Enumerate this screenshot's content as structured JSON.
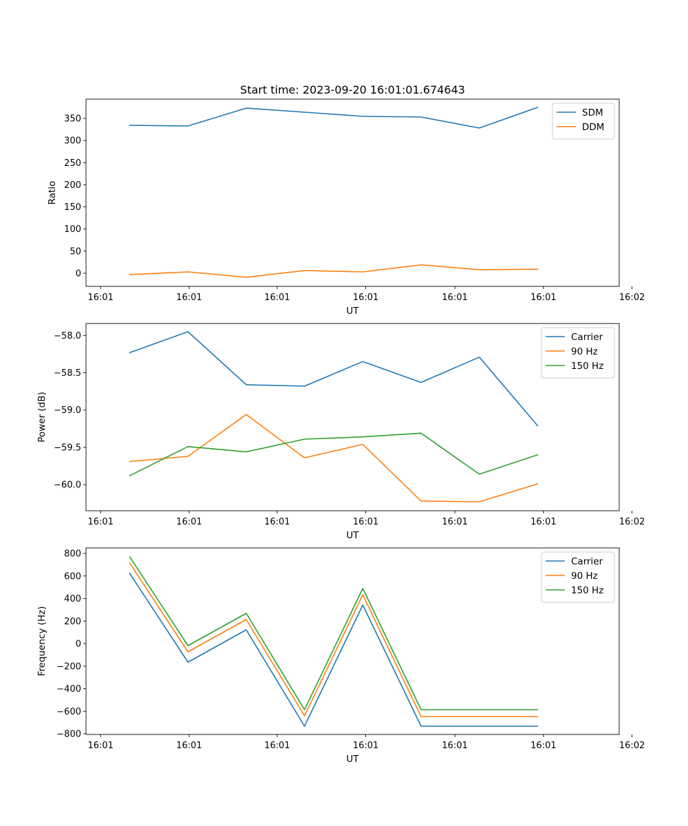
{
  "chart_data": [
    {
      "type": "line",
      "title": "Start time: 2023-09-20 16:01:01.674643",
      "xlabel": "UT",
      "ylabel": "Ratio",
      "xtick_labels": [
        "16:01",
        "16:01",
        "16:01",
        "16:01",
        "16:01",
        "16:01",
        "16:02"
      ],
      "ytick_labels": [
        "0",
        "50",
        "100",
        "150",
        "200",
        "250",
        "300",
        "350"
      ],
      "yticks": [
        0,
        50,
        100,
        150,
        200,
        250,
        300,
        350
      ],
      "ylim": [
        -29.6,
        393.5
      ],
      "x": [
        1,
        2,
        3,
        4,
        5,
        6,
        7,
        8
      ],
      "xlim": [
        0.25,
        9.4
      ],
      "xticks": [
        0.5,
        2.02,
        3.53,
        5.05,
        6.58,
        8.1,
        9.62
      ],
      "legend_position": "top-right",
      "grid": false,
      "series": [
        {
          "name": "SDM",
          "color": "#1f77b4",
          "values": [
            334.4,
            332.8,
            373.2,
            364.0,
            354.6,
            353.0,
            328.2,
            374.8
          ]
        },
        {
          "name": "DDM",
          "color": "#ff7f0e",
          "values": [
            -3,
            3,
            -9,
            6,
            3,
            19,
            8,
            9
          ]
        }
      ]
    },
    {
      "type": "line",
      "title": "",
      "xlabel": "UT",
      "ylabel": "Power (dB)",
      "xtick_labels": [
        "16:01",
        "16:01",
        "16:01",
        "16:01",
        "16:01",
        "16:01",
        "16:02"
      ],
      "ytick_labels": [
        "−60.0",
        "−59.5",
        "−59.0",
        "−58.5",
        "−58.0"
      ],
      "yticks": [
        -60.0,
        -59.5,
        -59.0,
        -58.5,
        -58.0
      ],
      "ylim": [
        -60.35,
        -57.84
      ],
      "x": [
        1,
        2,
        3,
        4,
        5,
        6,
        7,
        8
      ],
      "xlim": [
        0.25,
        9.4
      ],
      "xticks": [
        0.5,
        2.02,
        3.53,
        5.05,
        6.58,
        8.1,
        9.62
      ],
      "legend_position": "top-right",
      "grid": false,
      "series": [
        {
          "name": "Carrier",
          "color": "#1f77b4",
          "values": [
            -58.23,
            -57.95,
            -58.66,
            -58.68,
            -58.35,
            -58.63,
            -58.29,
            -59.21
          ]
        },
        {
          "name": "90 Hz",
          "color": "#ff7f0e",
          "values": [
            -59.69,
            -59.62,
            -59.06,
            -59.64,
            -59.46,
            -60.22,
            -60.23,
            -59.99
          ]
        },
        {
          "name": "150 Hz",
          "color": "#2ca02c",
          "values": [
            -59.88,
            -59.49,
            -59.56,
            -59.39,
            -59.36,
            -59.31,
            -59.86,
            -59.6
          ]
        }
      ]
    },
    {
      "type": "line",
      "title": "",
      "xlabel": "UT",
      "ylabel": "Frequency (Hz)",
      "xtick_labels": [
        "16:01",
        "16:01",
        "16:01",
        "16:01",
        "16:01",
        "16:01",
        "16:02"
      ],
      "ytick_labels": [
        "−800",
        "−600",
        "−400",
        "−200",
        "0",
        "200",
        "400",
        "600",
        "800"
      ],
      "yticks": [
        -800,
        -600,
        -400,
        -200,
        0,
        200,
        400,
        600,
        800
      ],
      "ylim": [
        -806,
        849
      ],
      "x": [
        1,
        2,
        3,
        4,
        5,
        6,
        7,
        8
      ],
      "xlim": [
        0.25,
        9.4
      ],
      "xticks": [
        0.5,
        2.02,
        3.53,
        5.05,
        6.58,
        8.1,
        9.62
      ],
      "legend_position": "top-right",
      "grid": false,
      "series": [
        {
          "name": "Carrier",
          "color": "#1f77b4",
          "values": [
            623,
            -165,
            122,
            -733,
            342,
            -733,
            -733,
            -733
          ]
        },
        {
          "name": "90 Hz",
          "color": "#ff7f0e",
          "values": [
            715,
            -73,
            214,
            -641,
            434,
            -647,
            -647,
            -647
          ]
        },
        {
          "name": "150 Hz",
          "color": "#2ca02c",
          "values": [
            770,
            -18,
            269,
            -586,
            489,
            -586,
            -586,
            -586
          ]
        }
      ]
    }
  ]
}
